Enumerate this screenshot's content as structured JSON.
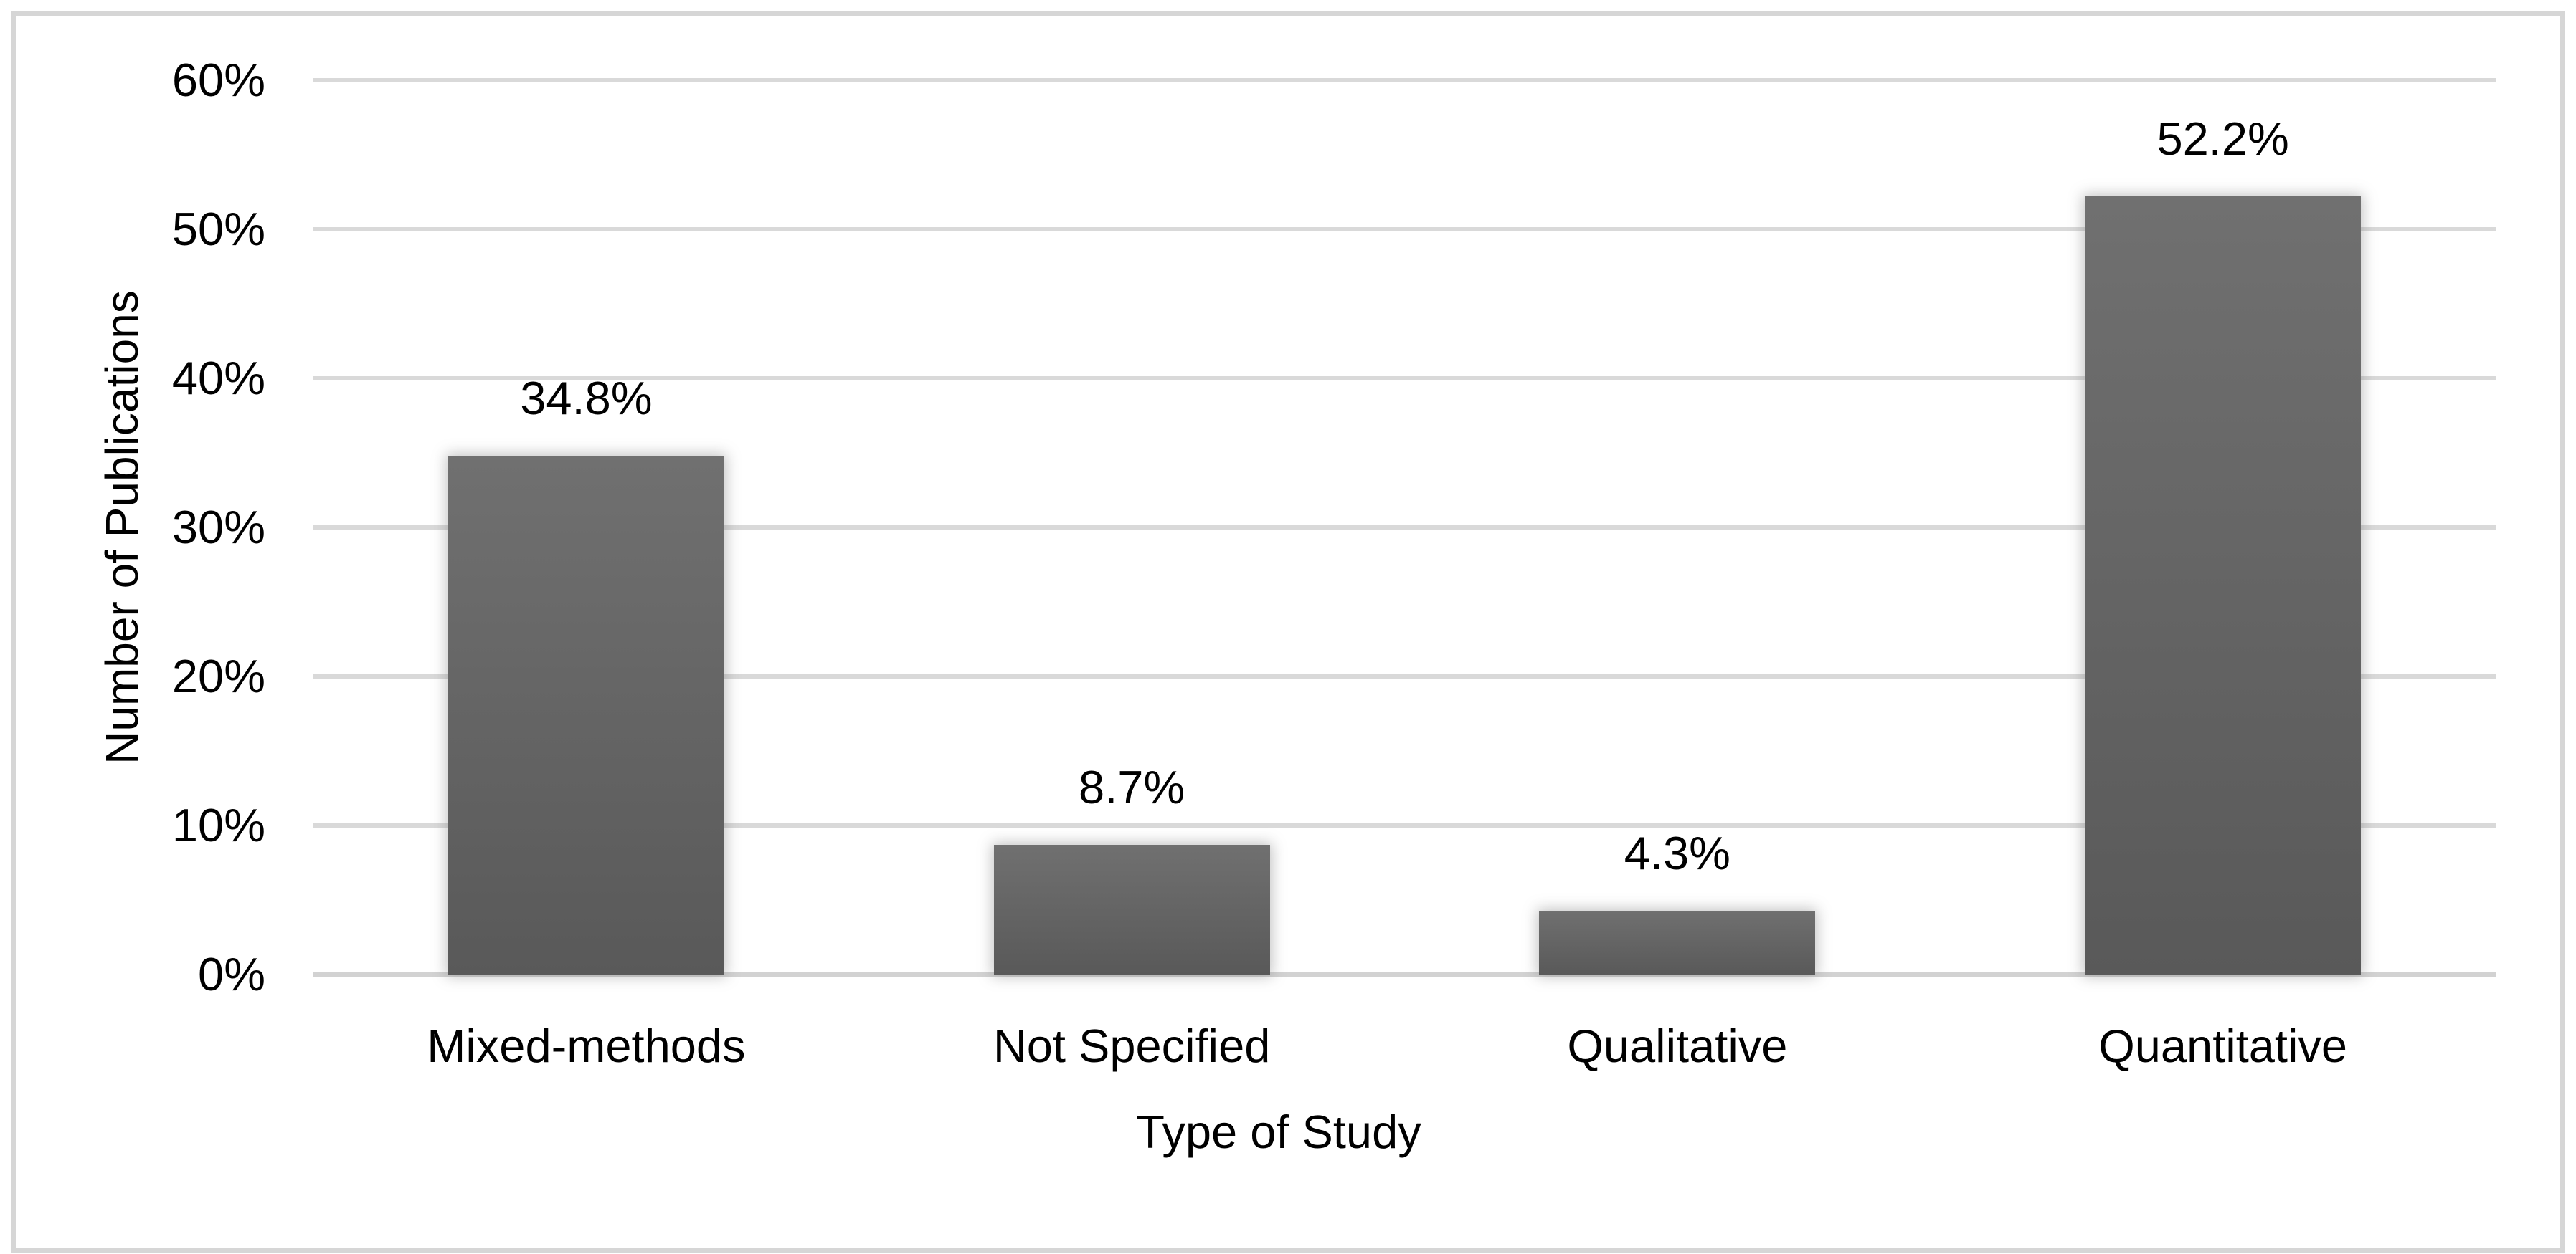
{
  "chart_data": {
    "type": "bar",
    "title": "",
    "categories": [
      "Mixed-methods",
      "Not Specified",
      "Qualitative",
      "Quantitative"
    ],
    "values": [
      34.8,
      8.7,
      4.3,
      52.2
    ],
    "value_labels": [
      "34.8%",
      "8.7%",
      "4.3%",
      "52.2%"
    ],
    "xlabel": "Type of Study",
    "ylabel": "Number of Publications",
    "y_ticks": [
      {
        "label": "60%",
        "value": 60
      },
      {
        "label": "50%",
        "value": 50
      },
      {
        "label": "40%",
        "value": 40
      },
      {
        "label": "30%",
        "value": 30
      },
      {
        "label": "20%",
        "value": 20
      },
      {
        "label": "10%",
        "value": 10
      },
      {
        "label": "0%",
        "value": 0
      }
    ],
    "ylim": [
      0,
      60
    ],
    "grid": true,
    "legend": "none",
    "bar_color_top": "#707070",
    "bar_color_bottom": "#595959",
    "gridline_color": "#d9d9d9",
    "frame_border_color": "#d6d6d6",
    "text_color": "#000000"
  }
}
